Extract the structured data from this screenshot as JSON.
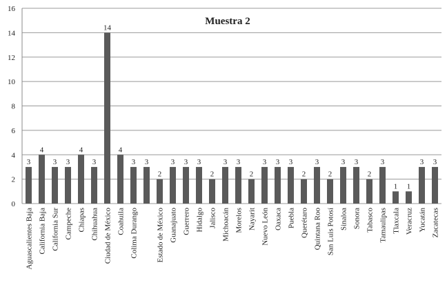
{
  "chart_data": {
    "type": "bar",
    "title": "Muestra 2",
    "categories": [
      "Aguascalientes Baja",
      "California Baja",
      "California Sur",
      "Campeche",
      "Chiapas",
      "Chihuahua",
      "Ciudad de México",
      "Coahuila",
      "Colima Durango",
      null,
      "Estado de México",
      "Guanajuato",
      "Guerrero",
      "Hidalgo",
      "Jalisco",
      "Michoacán",
      "Morelos",
      "Nayarit",
      "Nuevo León",
      "Oaxaca",
      "Puebla",
      "Querétaro",
      "Quintana Roo",
      "San Luis Potosí",
      "Sinaloa",
      "Sonora",
      "Tabasco",
      "Tamaulipas",
      "Tlaxcala",
      "Veracruz",
      "Yucatán",
      "Zacatecas"
    ],
    "values": [
      3,
      4,
      3,
      3,
      4,
      3,
      14,
      4,
      3,
      3,
      2,
      3,
      3,
      3,
      2,
      3,
      3,
      2,
      3,
      3,
      3,
      2,
      3,
      2,
      3,
      3,
      2,
      3,
      1,
      1,
      3,
      3
    ],
    "color": "#5a5a5a",
    "ylim": [
      0,
      16
    ],
    "yticks": [
      0,
      2,
      4,
      6,
      8,
      10,
      12,
      14,
      16
    ],
    "grid": true
  }
}
